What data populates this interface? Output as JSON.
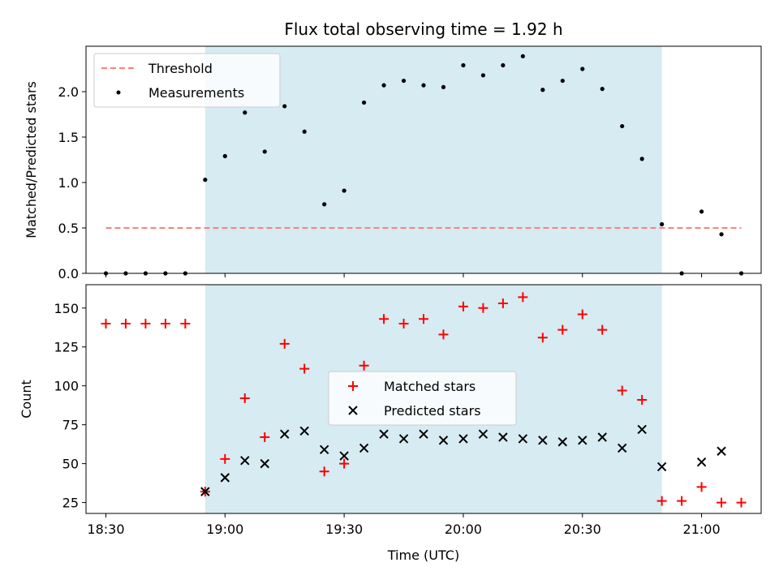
{
  "chart_data": [
    {
      "type": "scatter",
      "title": "Flux total observing time = 1.92 h",
      "xlabel": "",
      "ylabel": "Matched/Predicted stars",
      "xlim_minutes": [
        1105,
        1275
      ],
      "ylim": [
        0,
        2.5
      ],
      "yticks": [
        0.0,
        0.5,
        1.0,
        1.5,
        2.0
      ],
      "ytick_labels": [
        "0.0",
        "0.5",
        "1.0",
        "1.5",
        "2.0"
      ],
      "shaded_region_minutes": [
        1135,
        1250
      ],
      "threshold": {
        "name": "Threshold",
        "value": 0.5,
        "x_range_minutes": [
          1110,
          1270
        ],
        "color": "#ff7f7f"
      },
      "legend": {
        "placement": "upper-left",
        "entries": [
          "Threshold",
          "Measurements"
        ]
      },
      "series": [
        {
          "name": "Measurements",
          "color": "#000000",
          "x_minutes": [
            1110,
            1115,
            1120,
            1125,
            1130,
            1135,
            1140,
            1145,
            1150,
            1155,
            1160,
            1165,
            1170,
            1175,
            1180,
            1185,
            1190,
            1195,
            1200,
            1205,
            1210,
            1215,
            1220,
            1225,
            1230,
            1235,
            1240,
            1245,
            1250,
            1255,
            1260,
            1265,
            1270
          ],
          "values": [
            0,
            0,
            0,
            0,
            0,
            1.03,
            1.29,
            1.77,
            1.34,
            1.84,
            1.56,
            0.76,
            0.91,
            1.88,
            2.07,
            2.12,
            2.07,
            2.05,
            2.29,
            2.18,
            2.29,
            2.39,
            2.02,
            2.12,
            2.25,
            2.03,
            1.62,
            1.26,
            0.54,
            0,
            0.68,
            0.43,
            0
          ]
        }
      ]
    },
    {
      "type": "scatter",
      "title": "",
      "xlabel": "Time (UTC)",
      "ylabel": "Count",
      "xlim_minutes": [
        1105,
        1275
      ],
      "ylim": [
        18,
        165
      ],
      "yticks": [
        25,
        50,
        75,
        100,
        125,
        150
      ],
      "ytick_labels": [
        "25",
        "50",
        "75",
        "100",
        "125",
        "150"
      ],
      "xticks_minutes": [
        1110,
        1140,
        1170,
        1200,
        1230,
        1260
      ],
      "xtick_labels": [
        "18:30",
        "19:00",
        "19:30",
        "20:00",
        "20:30",
        "21:00"
      ],
      "shaded_region_minutes": [
        1135,
        1250
      ],
      "legend": {
        "placement": "center",
        "entries": [
          "Matched stars",
          "Predicted stars"
        ]
      },
      "series": [
        {
          "name": "Matched stars",
          "marker": "+",
          "color": "#ff0000",
          "x_minutes": [
            1110,
            1115,
            1120,
            1125,
            1130,
            1135,
            1140,
            1145,
            1150,
            1155,
            1160,
            1165,
            1170,
            1175,
            1180,
            1185,
            1190,
            1195,
            1200,
            1205,
            1210,
            1215,
            1220,
            1225,
            1230,
            1235,
            1240,
            1245,
            1250,
            1255,
            1260,
            1265,
            1270
          ],
          "values": [
            140,
            140,
            140,
            140,
            140,
            32,
            53,
            92,
            67,
            127,
            111,
            45,
            50,
            113,
            143,
            140,
            143,
            133,
            151,
            150,
            153,
            157,
            131,
            136,
            146,
            136,
            97,
            91,
            26,
            26,
            35,
            25,
            25
          ]
        },
        {
          "name": "Predicted stars",
          "marker": "x",
          "color": "#000000",
          "x_minutes": [
            1135,
            1140,
            1145,
            1150,
            1155,
            1160,
            1165,
            1170,
            1175,
            1180,
            1185,
            1190,
            1195,
            1200,
            1205,
            1210,
            1215,
            1220,
            1225,
            1230,
            1235,
            1240,
            1245,
            1250,
            1260,
            1265
          ],
          "values": [
            32,
            41,
            52,
            50,
            69,
            71,
            59,
            55,
            60,
            69,
            66,
            69,
            65,
            66,
            69,
            67,
            66,
            65,
            64,
            65,
            67,
            60,
            72,
            48,
            51,
            58
          ]
        }
      ]
    }
  ]
}
